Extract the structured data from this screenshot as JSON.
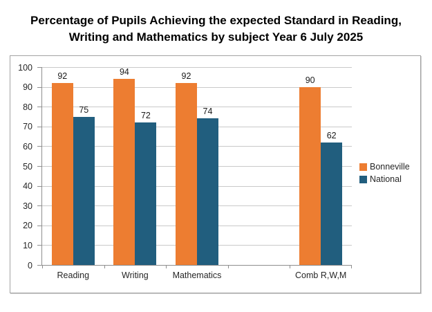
{
  "title": {
    "line1": "Percentage of Pupils Achieving the expected Standard in Reading,",
    "line2": "Writing and Mathematics by subject Year 6 July 2025"
  },
  "chart_data": {
    "type": "bar",
    "title": "Percentage of Pupils Achieving the expected Standard in Reading, Writing and Mathematics by subject Year 6 July 2025",
    "categories": [
      "Reading",
      "Writing",
      "Mathematics",
      "",
      "Comb R,W,M"
    ],
    "series": [
      {
        "name": "Bonneville",
        "color": "#ED7D31",
        "values": [
          92,
          94,
          92,
          null,
          90
        ]
      },
      {
        "name": "National",
        "color": "#215E7E",
        "values": [
          75,
          72,
          74,
          null,
          62
        ]
      }
    ],
    "xlabel": "",
    "ylabel": "",
    "ylim": [
      0,
      100
    ],
    "yticks": [
      0,
      10,
      20,
      30,
      40,
      50,
      60,
      70,
      80,
      90,
      100
    ],
    "grid": "horizontal",
    "data_labels": true,
    "legend_position": "right"
  }
}
